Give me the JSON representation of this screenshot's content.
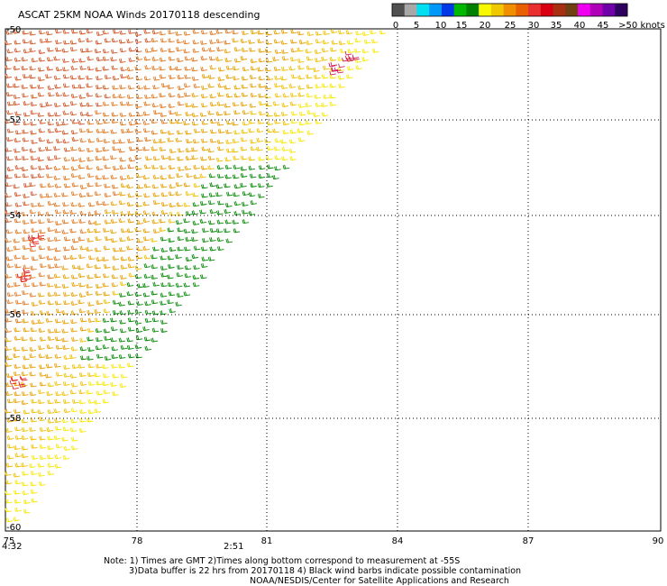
{
  "header": {
    "title": "ASCAT 25KM NOAA Winds 20170118 descending"
  },
  "legend": {
    "colors": [
      "#505050",
      "#a8a8a8",
      "#00e0f0",
      "#0098f8",
      "#0038e8",
      "#00b800",
      "#008000",
      "#f8f800",
      "#f0c800",
      "#f09000",
      "#e86000",
      "#e83030",
      "#d80010",
      "#a83010",
      "#704010",
      "#f000f0",
      "#b000b8",
      "#7000a8",
      "#300060"
    ],
    "tick_labels": [
      "0",
      "5",
      "10",
      "15",
      "20",
      "25",
      "30",
      "35",
      "40",
      "45",
      ">50 knots"
    ]
  },
  "map": {
    "lon_ticks": [
      "75",
      "78",
      "81",
      "84",
      "87",
      "90"
    ],
    "lat_ticks": [
      "-50",
      "-52",
      "-54",
      "-56",
      "-58",
      "-60"
    ],
    "time_labels": [
      "4:32",
      "2:51"
    ],
    "time_label_color": "#800080"
  },
  "notes": [
    "Note: 1) Times are GMT 2)Times along bottom correspond to measurement at -55S",
    "3)Data buffer is 22 hrs from 20170118 4) Black wind barbs indicate possible contamination",
    "NOAA/NESDIS/Center for Satellite Applications and Research"
  ]
}
